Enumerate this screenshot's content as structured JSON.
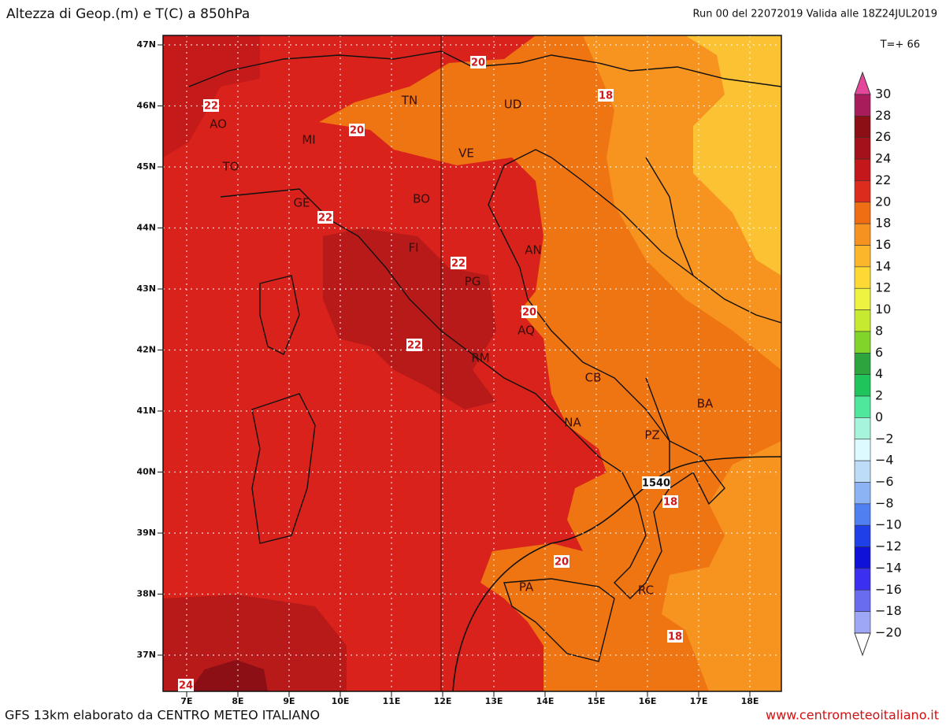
{
  "header": {
    "title": "Altezza di Geop.(m) e T(C) a 850hPa",
    "run": "Run 00 del 22072019  Valida alle 18Z24JUL2019",
    "step": "T=+ 66"
  },
  "map": {
    "lat_labels": [
      "47N",
      "46N",
      "45N",
      "44N",
      "43N",
      "42N",
      "41N",
      "40N",
      "39N",
      "38N",
      "37N"
    ],
    "lon_labels": [
      "7E",
      "8E",
      "9E",
      "10E",
      "11E",
      "12E",
      "13E",
      "14E",
      "15E",
      "16E",
      "17E",
      "18E"
    ],
    "cities": [
      "AO",
      "MI",
      "TO",
      "TN",
      "UD",
      "VE",
      "GE",
      "BO",
      "FI",
      "AN",
      "PG",
      "AQ",
      "RM",
      "CB",
      "NA",
      "PZ",
      "BA",
      "PA",
      "RC"
    ],
    "contour_labels": [
      "20",
      "18",
      "20",
      "22",
      "22",
      "22",
      "20",
      "22",
      "1540",
      "18",
      "20",
      "18",
      "24"
    ]
  },
  "colorbar": {
    "labels": [
      "30",
      "28",
      "26",
      "24",
      "22",
      "20",
      "18",
      "16",
      "14",
      "12",
      "10",
      "8",
      "6",
      "4",
      "2",
      "0",
      "−2",
      "−4",
      "−6",
      "−8",
      "−10",
      "−12",
      "−14",
      "−16",
      "−18",
      "−20"
    ]
  },
  "footer": {
    "left": "GFS 13km elaborato da CENTRO METEO ITALIANO",
    "right": "www.centrometeoitaliano.it"
  }
}
